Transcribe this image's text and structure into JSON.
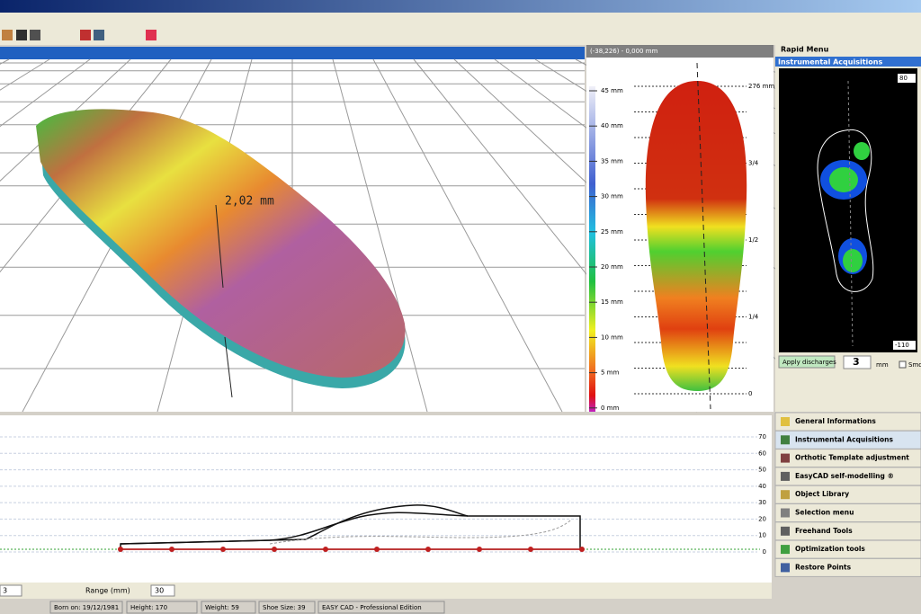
{
  "view3d": {
    "annotation": "2,02 mm"
  },
  "scale": {
    "header": "(-38,226) - 0,000 mm",
    "labels": [
      "45 mm",
      "40 mm",
      "35 mm",
      "30 mm",
      "25 mm",
      "20 mm",
      "15 mm",
      "10 mm",
      "5 mm",
      "0 mm"
    ]
  },
  "footmap": {
    "labels": [
      "276 mm",
      "3/4",
      "1/2",
      "1/4",
      "0"
    ]
  },
  "rapid_menu": {
    "title": "Rapid Menu",
    "section": "Instrumental Acquisitions",
    "max": "80",
    "min": "-110",
    "button": "Apply discharges",
    "spin_value": "3",
    "unit": "mm",
    "checkbox": "Smo"
  },
  "menu": [
    "General Informations",
    "Instrumental Acquisitions",
    "Orthotic Template adjustment",
    "EasyCAD self-modelling ®",
    "Object Library",
    "Selection menu",
    "Freehand Tools",
    "Optimization tools",
    "Restore Points"
  ],
  "profile": {
    "yticks": [
      70,
      60,
      50,
      40,
      30,
      20,
      10,
      0
    ],
    "left_value": "3",
    "range_label": "Range (mm)",
    "range_value": "30"
  },
  "status": [
    "Born on: 19/12/1981",
    "Height: 170",
    "Weight: 59",
    "Shoe Size: 39",
    "EASY CAD - Professional Edition"
  ]
}
